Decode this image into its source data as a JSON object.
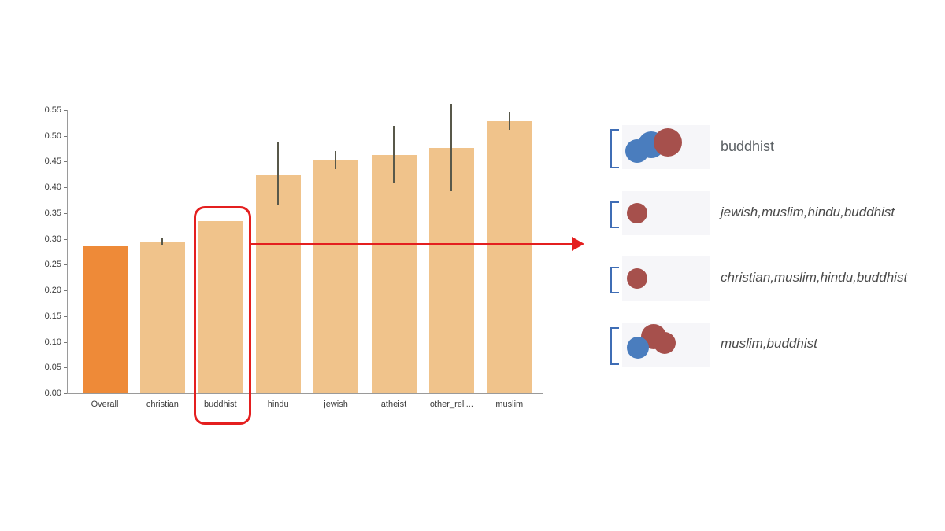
{
  "chart_data": {
    "type": "bar",
    "title": "",
    "xlabel": "",
    "ylabel": "",
    "categories": [
      "Overall",
      "christian",
      "buddhist",
      "hindu",
      "jewish",
      "atheist",
      "other_reli...",
      "muslim"
    ],
    "values": [
      0.285,
      0.293,
      0.335,
      0.425,
      0.452,
      0.463,
      0.477,
      0.528
    ],
    "errors_low": [
      0.285,
      0.287,
      0.278,
      0.365,
      0.435,
      0.408,
      0.393,
      0.512
    ],
    "errors_high": [
      0.285,
      0.301,
      0.388,
      0.487,
      0.47,
      0.52,
      0.562,
      0.546
    ],
    "ylim": [
      0,
      0.55
    ],
    "ytick_labels": [
      "0.00",
      "0.05",
      "0.10",
      "0.15",
      "0.20",
      "0.25",
      "0.30",
      "0.35",
      "0.40",
      "0.45",
      "0.50",
      "0.55"
    ],
    "grid": false,
    "legend_position": "none",
    "bar_colors": [
      "#ee8a38",
      "#f0c38b",
      "#f0c38b",
      "#f0c38b",
      "#f0c38b",
      "#f0c38b",
      "#f0c38b",
      "#f0c38b"
    ],
    "error_color": "#58584a",
    "axis_color": "#9a9a9a",
    "highlight_category": "buddhist"
  },
  "annotation": {
    "highlight_color": "#e41f1f",
    "arrow_color": "#e41f1f"
  },
  "legend": {
    "bracket_color": "#3f6db5",
    "panel_color": "#f6f6f9",
    "circle_colors": {
      "blue": "#4a7dbe",
      "red": "#a6504c"
    },
    "rows": [
      {
        "label": "buddhist",
        "italic": false,
        "bracket_h": 46,
        "circles": [
          {
            "c": "blue",
            "x": 4,
            "y": 18,
            "d": 30
          },
          {
            "c": "blue",
            "x": 20,
            "y": 8,
            "d": 34
          },
          {
            "c": "red",
            "x": 40,
            "y": 4,
            "d": 36
          }
        ]
      },
      {
        "label": "jewish,muslim,hindu,buddhist",
        "italic": true,
        "bracket_h": 30,
        "circles": [
          {
            "c": "red",
            "x": 6,
            "y": 15,
            "d": 26
          }
        ]
      },
      {
        "label": "christian,muslim,hindu,buddhist",
        "italic": true,
        "bracket_h": 30,
        "circles": [
          {
            "c": "red",
            "x": 6,
            "y": 15,
            "d": 26
          }
        ]
      },
      {
        "label": "muslim,buddhist",
        "italic": true,
        "bracket_h": 44,
        "circles": [
          {
            "c": "red",
            "x": 24,
            "y": 2,
            "d": 32
          },
          {
            "c": "red",
            "x": 40,
            "y": 12,
            "d": 28
          },
          {
            "c": "blue",
            "x": 6,
            "y": 18,
            "d": 28
          }
        ]
      }
    ]
  }
}
